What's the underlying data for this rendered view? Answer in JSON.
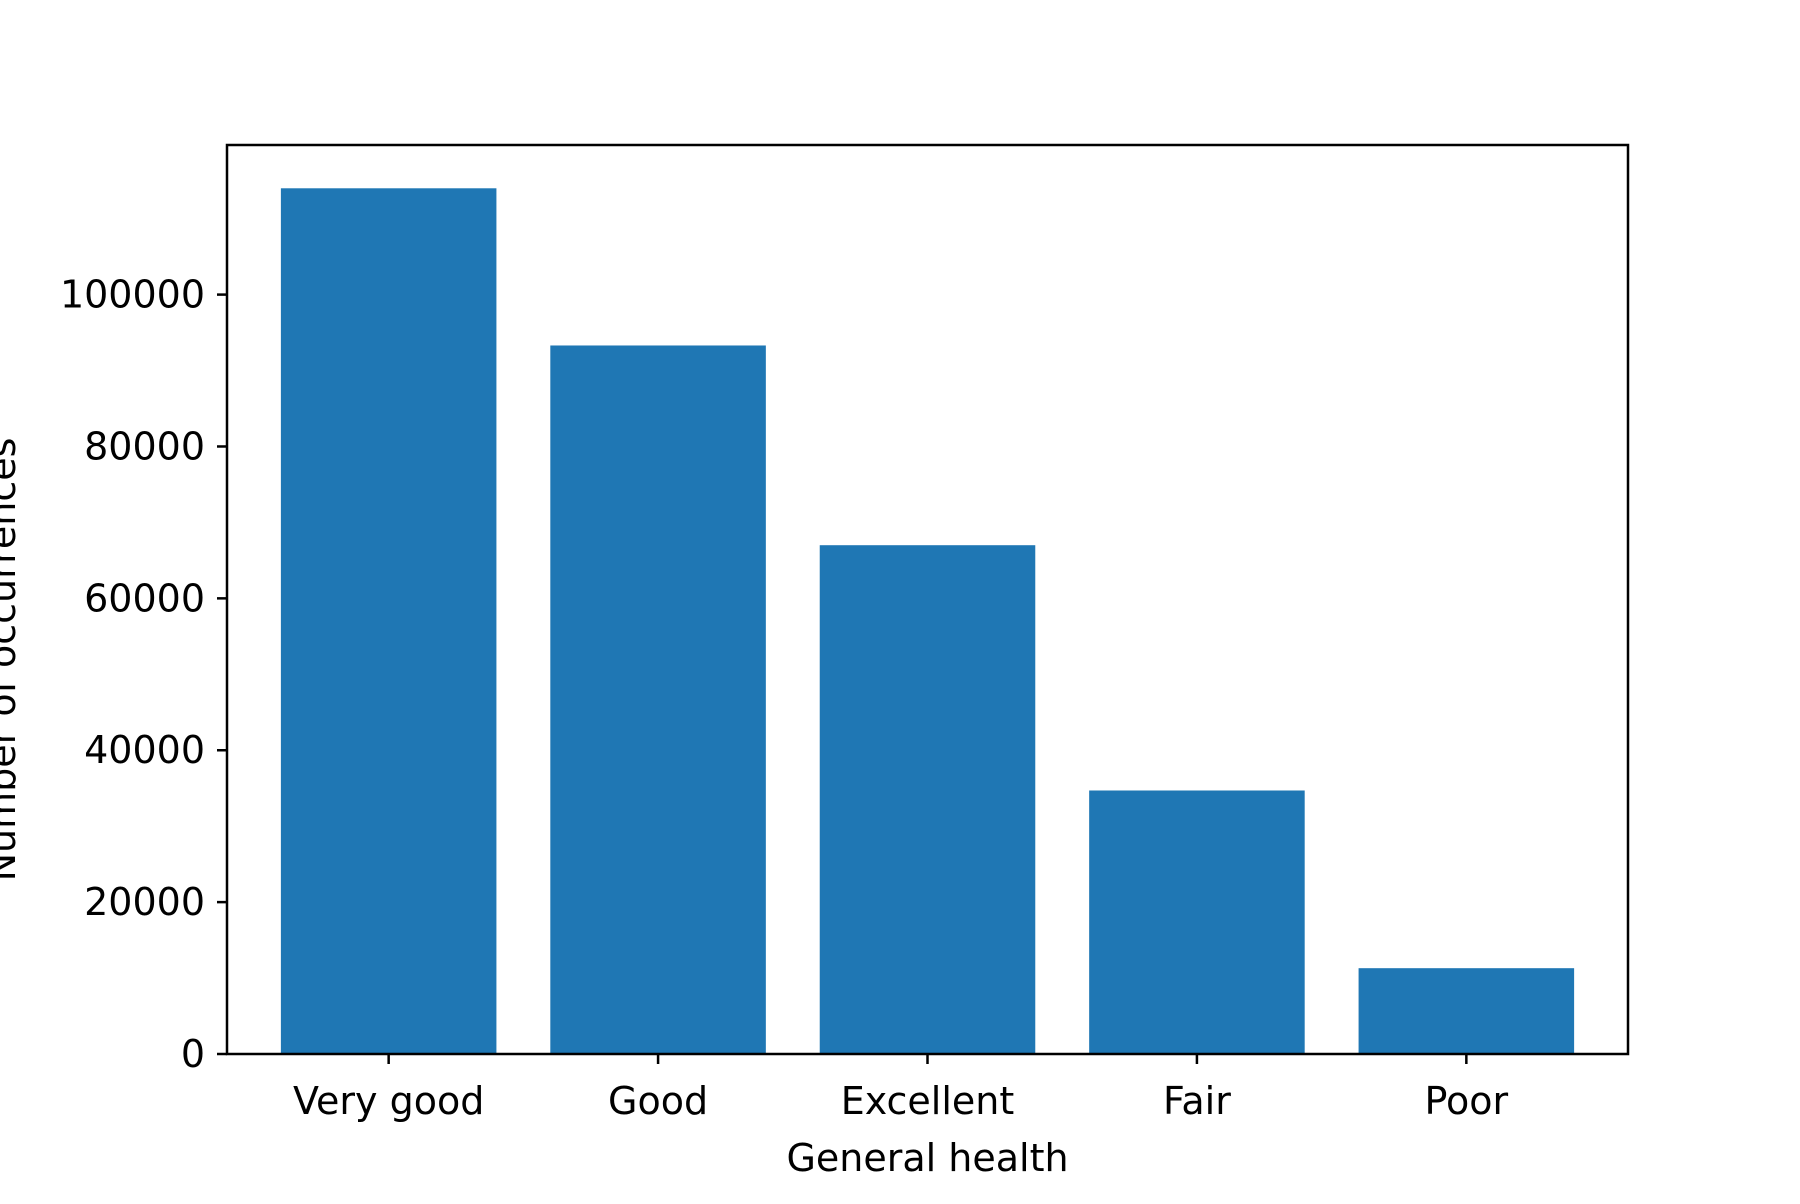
{
  "chart_data": {
    "type": "bar",
    "title": "",
    "xlabel": "General health",
    "ylabel": "Number of occurrences",
    "categories": [
      "Very good",
      "Good",
      "Excellent",
      "Fair",
      "Poor"
    ],
    "values": [
      114000,
      93300,
      67000,
      34700,
      11300
    ],
    "ylim": [
      0,
      119700
    ],
    "yticks": [
      0,
      20000,
      40000,
      60000,
      80000,
      100000
    ],
    "ytick_labels": [
      "0",
      "20000",
      "40000",
      "60000",
      "80000",
      "100000"
    ],
    "bar_color": "#1f77b4",
    "grid": false,
    "legend": "none"
  }
}
